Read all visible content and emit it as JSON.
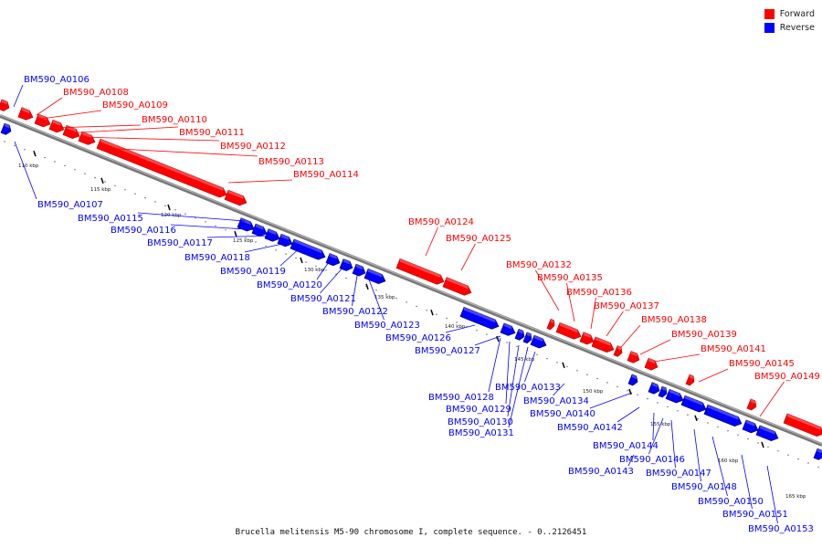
{
  "legend": {
    "forward_label": "Forward",
    "reverse_label": "Reverse",
    "forward_color": "#ff0000",
    "reverse_color": "#0000ff"
  },
  "caption": "Brucella melitensis M5-90 chromosome I, complete sequence. - 0..2126451",
  "axis": {
    "tick_labels": [
      "110 kbp",
      "115 kbp",
      "120 kbp",
      "125 kbp",
      "130 kbp",
      "135 kbp",
      "140 kbp",
      "145 kbp",
      "150 kbp",
      "155 kbp",
      "160 kbp",
      "165 kbp"
    ]
  },
  "forward_genes": [
    "BM590_A0108",
    "BM590_A0109",
    "BM590_A0110",
    "BM590_A0111",
    "BM590_A0112",
    "BM590_A0113",
    "BM590_A0114",
    "BM590_A0124",
    "BM590_A0125",
    "BM590_A0132",
    "BM590_A0135",
    "BM590_A0136",
    "BM590_A0137",
    "BM590_A0138",
    "BM590_A0139",
    "BM590_A0141",
    "BM590_A0145",
    "BM590_A0149"
  ],
  "reverse_genes": [
    "BM590_A0106",
    "BM590_A0107",
    "BM590_A0115",
    "BM590_A0116",
    "BM590_A0117",
    "BM590_A0118",
    "BM590_A0119",
    "BM590_A0120",
    "BM590_A0121",
    "BM590_A0122",
    "BM590_A0123",
    "BM590_A0126",
    "BM590_A0127",
    "BM590_A0128",
    "BM590_A0129",
    "BM590_A0130",
    "BM590_A0131",
    "BM590_A0133",
    "BM590_A0134",
    "BM590_A0140",
    "BM590_A0142",
    "BM590_A0143",
    "BM590_A0144",
    "BM590_A0146",
    "BM590_A0147",
    "BM590_A0148",
    "BM590_A0150",
    "BM590_A0151",
    "BM590_A0153"
  ]
}
